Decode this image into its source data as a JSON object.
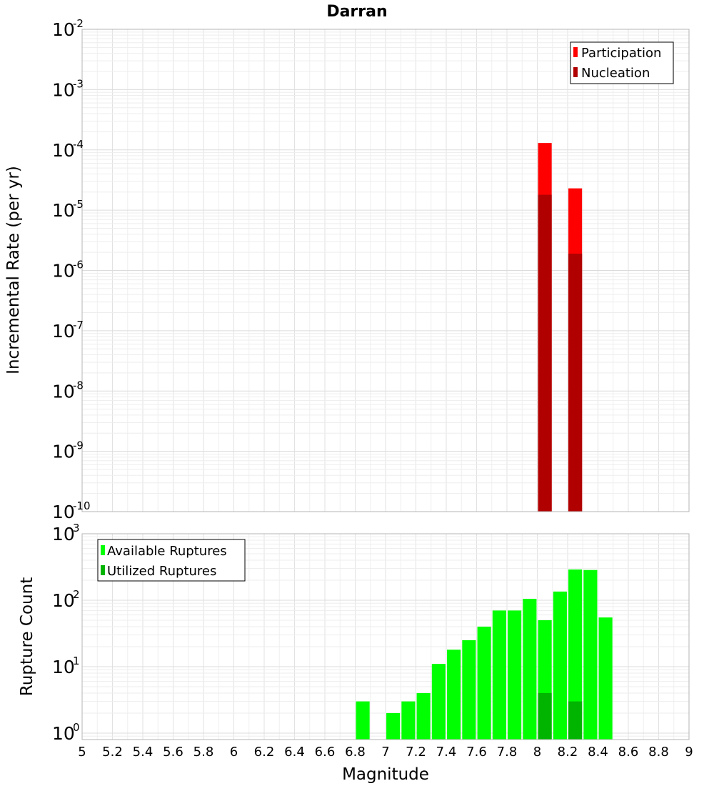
{
  "chart_data": [
    {
      "type": "bar",
      "title": "Darran",
      "xlabel": "Magnitude",
      "ylabel": "Incremental Rate (per yr)",
      "yscale": "log",
      "ylim": [
        1e-10,
        0.01
      ],
      "xlim": [
        5,
        9
      ],
      "bar_width": 0.09,
      "legend_position": "top-right",
      "y_ticks": [
        {
          "base": "10",
          "exp": "-10"
        },
        {
          "base": "10",
          "exp": "-9"
        },
        {
          "base": "10",
          "exp": "-8"
        },
        {
          "base": "10",
          "exp": "-7"
        },
        {
          "base": "10",
          "exp": "-6"
        },
        {
          "base": "10",
          "exp": "-5"
        },
        {
          "base": "10",
          "exp": "-4"
        },
        {
          "base": "10",
          "exp": "-3"
        },
        {
          "base": "10",
          "exp": "-2"
        }
      ],
      "series": [
        {
          "name": "Participation",
          "color": "#ff0000",
          "x": [
            8.05,
            8.25
          ],
          "values": [
            0.00013,
            2.3e-05
          ]
        },
        {
          "name": "Nucleation",
          "color": "#b00000",
          "x": [
            8.05,
            8.25
          ],
          "values": [
            1.8e-05,
            1.9e-06
          ]
        }
      ]
    },
    {
      "type": "bar",
      "title": "",
      "xlabel": "Magnitude",
      "ylabel": "Rupture Count",
      "yscale": "log",
      "ylim": [
        0.8,
        1000
      ],
      "xlim": [
        5,
        9
      ],
      "bar_width": 0.09,
      "legend_position": "top-left",
      "y_ticks": [
        {
          "base": "10",
          "exp": "0"
        },
        {
          "base": "10",
          "exp": "1"
        },
        {
          "base": "10",
          "exp": "2"
        },
        {
          "base": "10",
          "exp": "3"
        }
      ],
      "x_ticks": [
        "5",
        "5.2",
        "5.4",
        "5.6",
        "5.8",
        "6",
        "6.2",
        "6.4",
        "6.6",
        "6.8",
        "7",
        "7.2",
        "7.4",
        "7.6",
        "7.8",
        "8",
        "8.2",
        "8.4",
        "8.6",
        "8.8",
        "9"
      ],
      "series": [
        {
          "name": "Available Ruptures",
          "color": "#00ff00",
          "x": [
            6.85,
            7.05,
            7.15,
            7.25,
            7.35,
            7.45,
            7.55,
            7.65,
            7.75,
            7.85,
            7.95,
            8.05,
            8.15,
            8.25,
            8.35,
            8.45
          ],
          "values": [
            3,
            2,
            3,
            4,
            11,
            18,
            25,
            40,
            70,
            70,
            105,
            50,
            135,
            290,
            285,
            55
          ]
        },
        {
          "name": "Utilized Ruptures",
          "color": "#00b400",
          "x": [
            8.05,
            8.25
          ],
          "values": [
            4,
            3
          ]
        }
      ]
    }
  ]
}
